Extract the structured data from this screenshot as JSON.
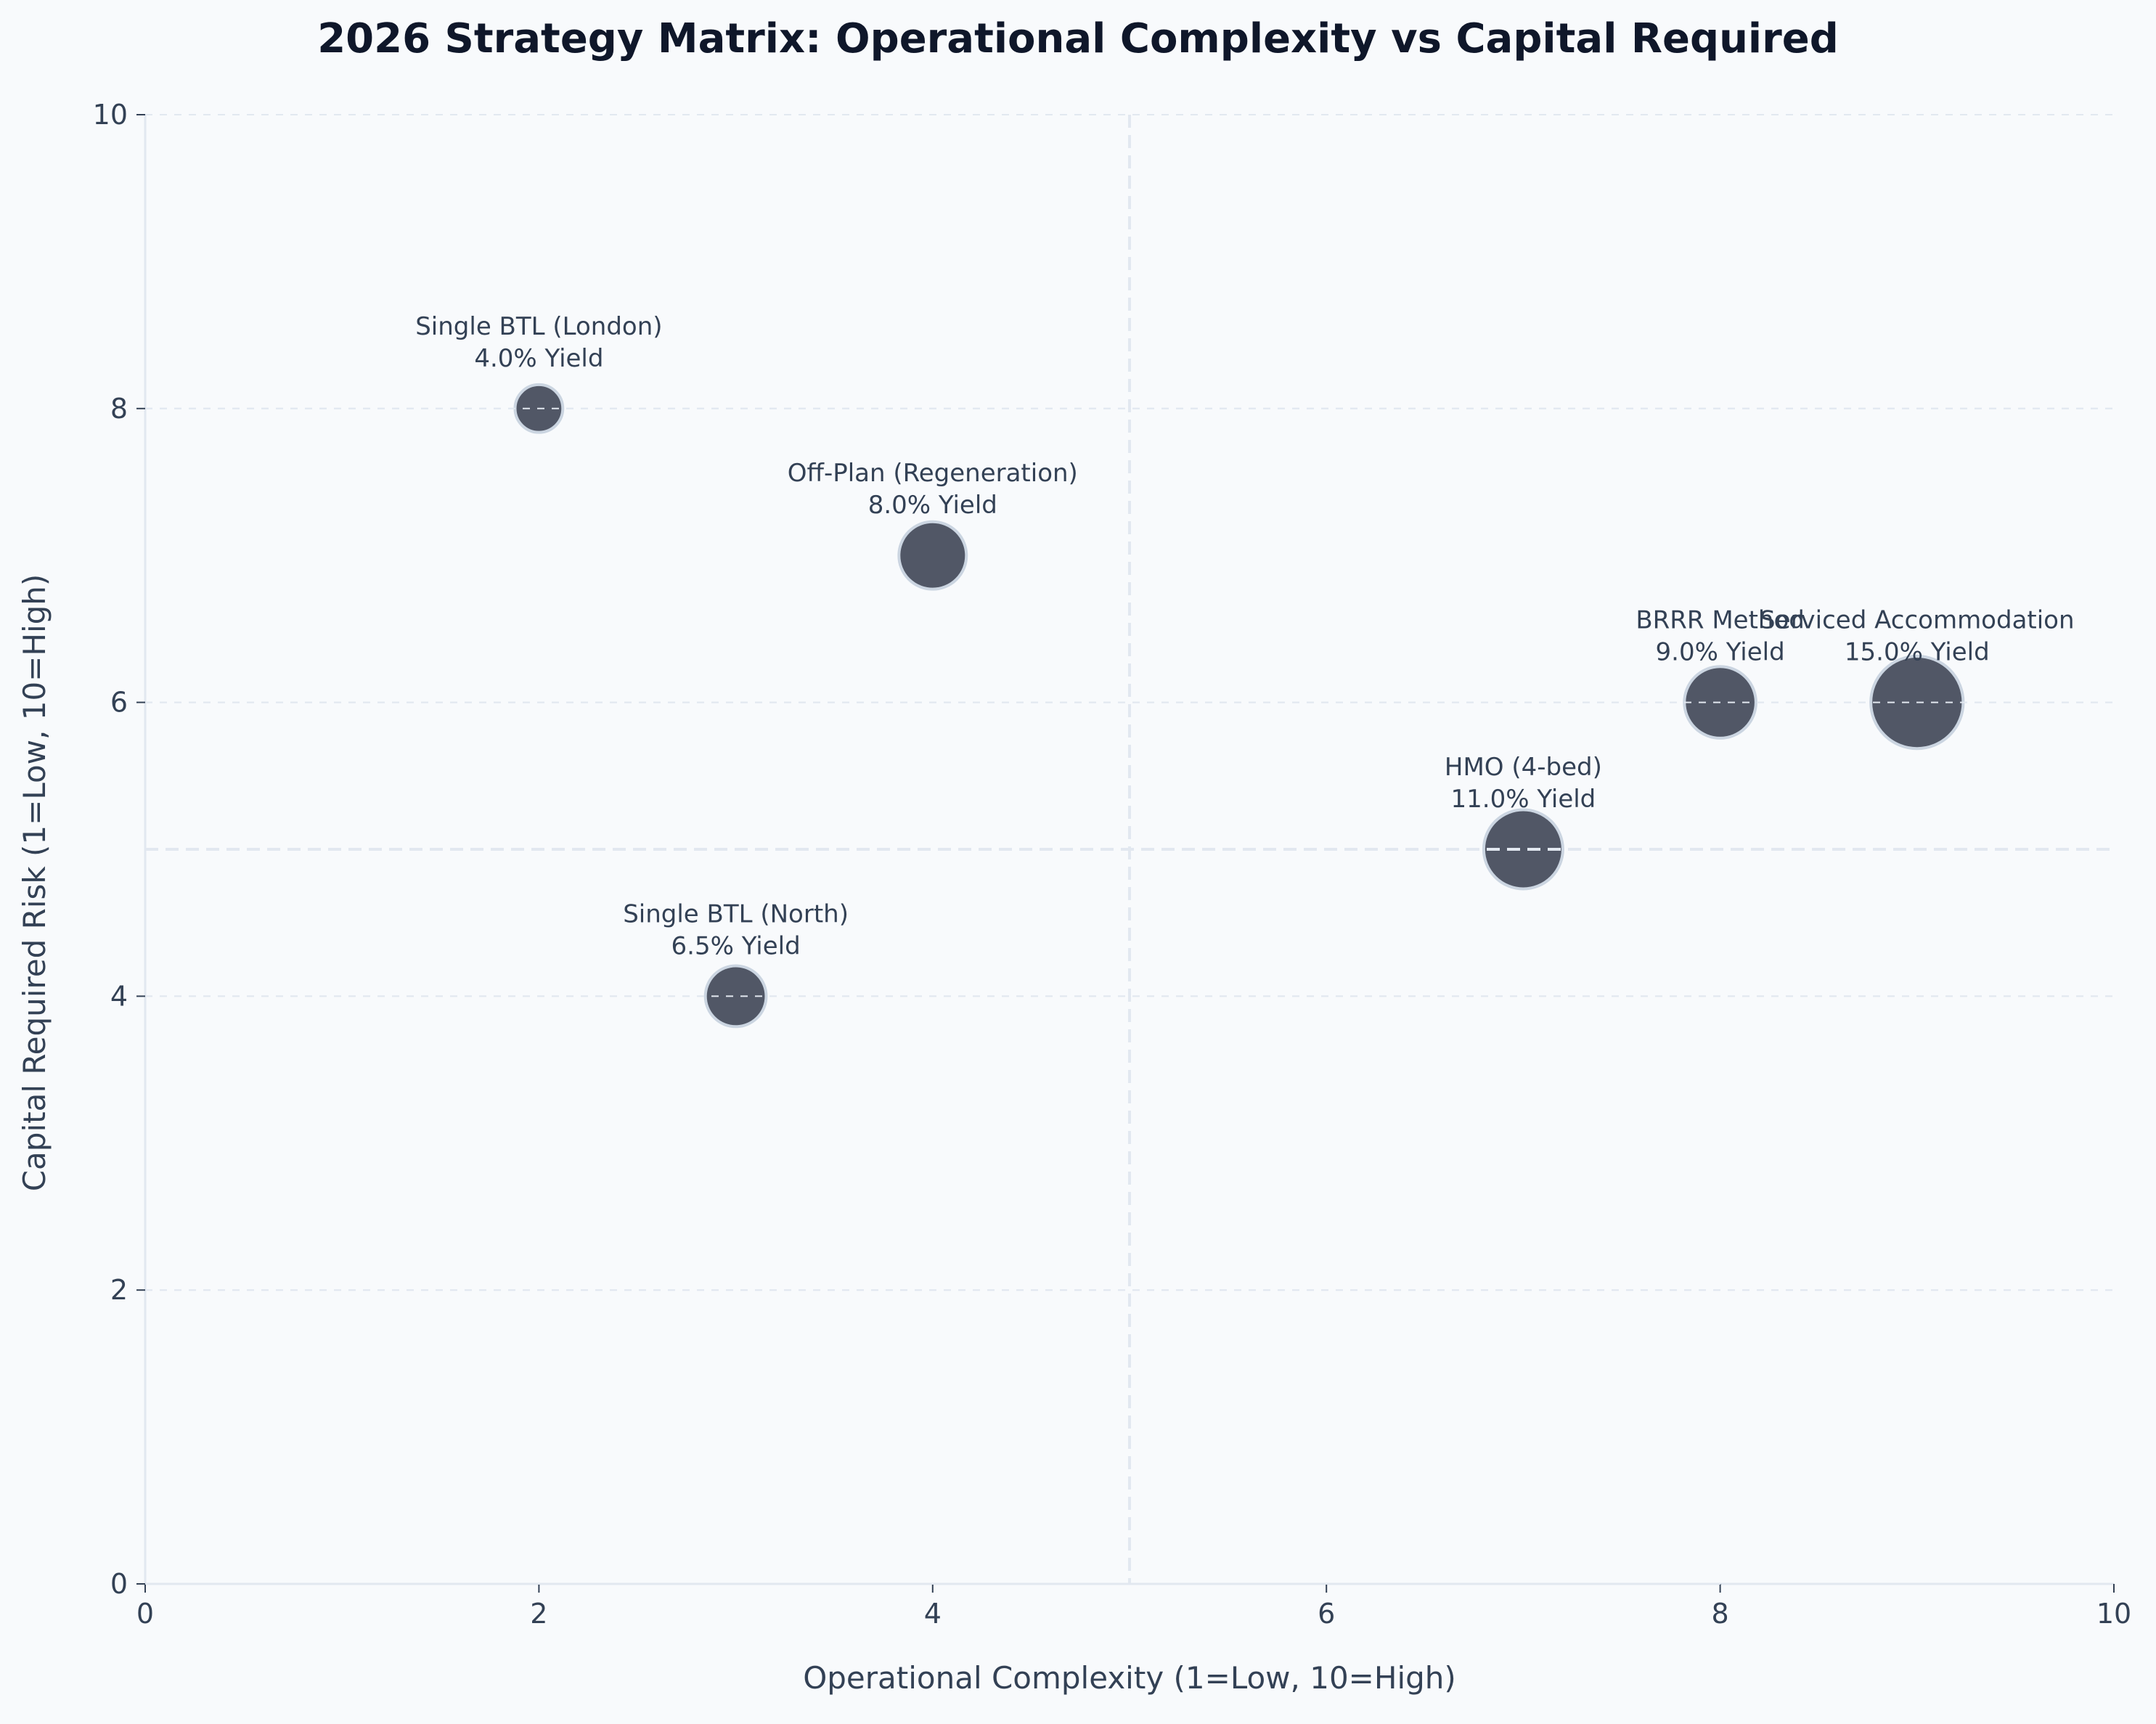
{
  "chart_data": {
    "type": "scatter",
    "title": "2026 Strategy Matrix: Operational Complexity vs Capital Required",
    "xlabel": "Operational Complexity (1=Low, 10=High)",
    "ylabel": "Capital Required Risk (1=Low, 10=High)",
    "xlim": [
      0,
      10
    ],
    "ylim": [
      0,
      10
    ],
    "xticks": [
      "0",
      "2",
      "4",
      "6",
      "8",
      "10"
    ],
    "yticks": [
      "0",
      "2",
      "4",
      "6",
      "8",
      "10"
    ],
    "grid": "horizontal dashed",
    "quadrant_lines": {
      "x": 5,
      "y": 5
    },
    "marker_color": "#4b5261",
    "marker_edge_color": "#cbd5e1",
    "background": "#f8fafc",
    "points": [
      {
        "name": "Single BTL (London)",
        "x": 2,
        "y": 8,
        "yield": 4.0,
        "yield_label": "4.0% Yield"
      },
      {
        "name": "Single BTL (North)",
        "x": 3,
        "y": 4,
        "yield": 6.5,
        "yield_label": "6.5% Yield"
      },
      {
        "name": "Off-Plan (Regeneration)",
        "x": 4,
        "y": 7,
        "yield": 8.0,
        "yield_label": "8.0% Yield"
      },
      {
        "name": "HMO (4-bed)",
        "x": 7,
        "y": 5,
        "yield": 11.0,
        "yield_label": "11.0% Yield"
      },
      {
        "name": "BRRR Method",
        "x": 8,
        "y": 6,
        "yield": 9.0,
        "yield_label": "9.0% Yield"
      },
      {
        "name": "Serviced Accommodation",
        "x": 9,
        "y": 6,
        "yield": 15.0,
        "yield_label": "15.0% Yield"
      }
    ]
  }
}
